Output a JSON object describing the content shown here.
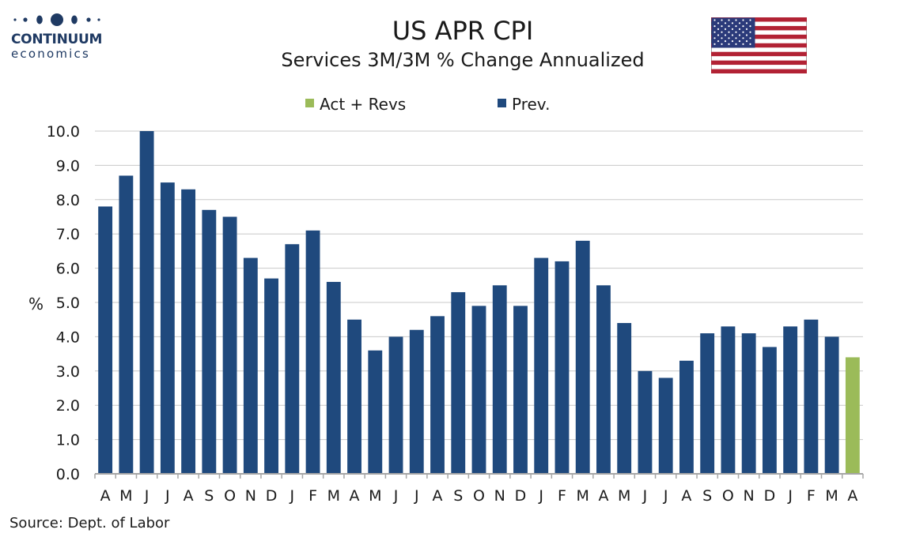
{
  "logo": {
    "brand": "CONTINUUM",
    "sub": "economics"
  },
  "colors": {
    "prev": "#1f497d",
    "act": "#9bbb59",
    "grid": "#c8c8c8",
    "logo": "#1f3a63"
  },
  "flag": {
    "icon": "us-flag-icon"
  },
  "source": "Source: Dept. of Labor",
  "chart_data": {
    "type": "bar",
    "title": "US APR CPI",
    "subtitle": "Services 3M/3M % Change Annualized",
    "ylabel": "%",
    "xlabel": "",
    "ylim": [
      0,
      10
    ],
    "yticks": [
      "0.0",
      "1.0",
      "2.0",
      "3.0",
      "4.0",
      "5.0",
      "6.0",
      "7.0",
      "8.0",
      "9.0",
      "10.0"
    ],
    "grid": true,
    "legend": {
      "position": "top",
      "entries": [
        {
          "name": "Act + Revs",
          "color": "#9bbb59"
        },
        {
          "name": "Prev.",
          "color": "#1f497d"
        }
      ]
    },
    "categories": [
      "A",
      "M",
      "J",
      "J",
      "A",
      "S",
      "O",
      "N",
      "D",
      "J",
      "F",
      "M",
      "A",
      "M",
      "J",
      "J",
      "A",
      "S",
      "O",
      "N",
      "D",
      "J",
      "F",
      "M",
      "A",
      "M",
      "J",
      "J",
      "A",
      "S",
      "O",
      "N",
      "D",
      "J",
      "F",
      "M",
      "A"
    ],
    "series": [
      {
        "name": "Prev.",
        "values": [
          7.8,
          8.7,
          10.0,
          8.5,
          8.3,
          7.7,
          7.5,
          6.3,
          5.7,
          6.7,
          7.1,
          5.6,
          4.5,
          3.6,
          4.0,
          4.2,
          4.6,
          5.3,
          4.9,
          5.5,
          4.9,
          6.3,
          6.2,
          6.8,
          5.5,
          4.4,
          3.0,
          2.8,
          3.3,
          4.1,
          4.3,
          4.1,
          3.7,
          4.3,
          4.5,
          4.0,
          null
        ]
      },
      {
        "name": "Act + Revs",
        "values": [
          null,
          null,
          null,
          null,
          null,
          null,
          null,
          null,
          null,
          null,
          null,
          null,
          null,
          null,
          null,
          null,
          null,
          null,
          null,
          null,
          null,
          null,
          null,
          null,
          null,
          null,
          null,
          null,
          null,
          null,
          null,
          null,
          null,
          null,
          null,
          null,
          3.4
        ]
      }
    ]
  }
}
